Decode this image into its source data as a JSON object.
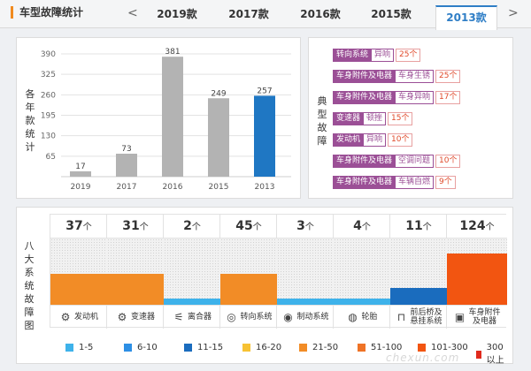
{
  "header": {
    "title": "车型故障统计",
    "prev_arrow": "<",
    "next_arrow": ">",
    "tabs": [
      "2019款",
      "2017款",
      "2016款",
      "2015款",
      "2013款"
    ],
    "active_tab": "2013款"
  },
  "year_chart": {
    "side_label": [
      "各",
      "年",
      "款",
      "统",
      "计"
    ]
  },
  "chart_data": [
    {
      "type": "bar",
      "categories": [
        "2019",
        "2017",
        "2016",
        "2015",
        "2013"
      ],
      "values": [
        17,
        73,
        381,
        249,
        257
      ],
      "highlight_category": "2013",
      "bar_color": "#b3b3b3",
      "highlight_color": "#1f77c3",
      "yticks": [
        65,
        130,
        195,
        260,
        325,
        390
      ],
      "ylim": [
        0,
        390
      ],
      "grid": true,
      "xlabel": "",
      "ylabel": "各年款统计"
    },
    {
      "type": "bar",
      "categories": [
        "发动机",
        "变速器",
        "离合器",
        "转向系统",
        "制动系统",
        "轮胎",
        "前后桥及悬挂系统",
        "车身附件及电器"
      ],
      "values": [
        37,
        31,
        2,
        45,
        3,
        4,
        11,
        124
      ],
      "unit": "个",
      "bins": [
        {
          "label": "1-5",
          "color": "#3eb2ea"
        },
        {
          "label": "6-10",
          "color": "#2d8fe5"
        },
        {
          "label": "11-15",
          "color": "#1a6cbe"
        },
        {
          "label": "16-20",
          "color": "#f7c234"
        },
        {
          "label": "21-50",
          "color": "#f28c26"
        },
        {
          "label": "51-100",
          "color": "#ef7326"
        },
        {
          "label": "101-300",
          "color": "#f25511"
        },
        {
          "label": "300以上",
          "color": "#e02a1d"
        }
      ],
      "ylabel": "八大系统故障图"
    }
  ],
  "typical_faults": {
    "side_label": [
      "典",
      "型",
      "故",
      "障"
    ],
    "items": [
      {
        "system": "转向系统",
        "desc": "异响",
        "count": "25个"
      },
      {
        "system": "车身附件及电器",
        "desc": "车身生锈",
        "count": "25个"
      },
      {
        "system": "车身附件及电器",
        "desc": "车身异响",
        "count": "17个"
      },
      {
        "system": "变速器",
        "desc": "顿挫",
        "count": "15个"
      },
      {
        "system": "发动机",
        "desc": "异响",
        "count": "10个"
      },
      {
        "system": "车身附件及电器",
        "desc": "空调问题",
        "count": "10个"
      },
      {
        "system": "车身附件及电器",
        "desc": "车辆自燃",
        "count": "9个"
      }
    ]
  },
  "systems_chart": {
    "side_label": [
      "八",
      "大",
      "系",
      "统",
      "故",
      "障",
      "图"
    ],
    "columns": [
      {
        "count": "37",
        "unit": "个",
        "name": "发动机",
        "name2": "",
        "icon": "engine-icon",
        "bin": "21-50",
        "fill_color": "#f28c26"
      },
      {
        "count": "31",
        "unit": "个",
        "name": "变速器",
        "name2": "",
        "icon": "gearbox-icon",
        "bin": "21-50",
        "fill_color": "#f28c26"
      },
      {
        "count": "2",
        "unit": "个",
        "name": "离合器",
        "name2": "",
        "icon": "clutch-icon",
        "bin": "1-5",
        "fill_color": "#3eb2ea"
      },
      {
        "count": "45",
        "unit": "个",
        "name": "转向系统",
        "name2": "",
        "icon": "steering-wheel-icon",
        "bin": "21-50",
        "fill_color": "#f28c26"
      },
      {
        "count": "3",
        "unit": "个",
        "name": "制动系统",
        "name2": "",
        "icon": "brake-icon",
        "bin": "1-5",
        "fill_color": "#3eb2ea"
      },
      {
        "count": "4",
        "unit": "个",
        "name": "轮胎",
        "name2": "",
        "icon": "tire-icon",
        "bin": "1-5",
        "fill_color": "#3eb2ea"
      },
      {
        "count": "11",
        "unit": "个",
        "name": "前后桥及",
        "name2": "悬挂系统",
        "icon": "axle-icon",
        "bin": "11-15",
        "fill_color": "#1a6cbe"
      },
      {
        "count": "124",
        "unit": "个",
        "name": "车身附件",
        "name2": "及电器",
        "icon": "car-body-icon",
        "bin": "101-300",
        "fill_color": "#f25511"
      }
    ]
  },
  "watermark": "chexun.com"
}
